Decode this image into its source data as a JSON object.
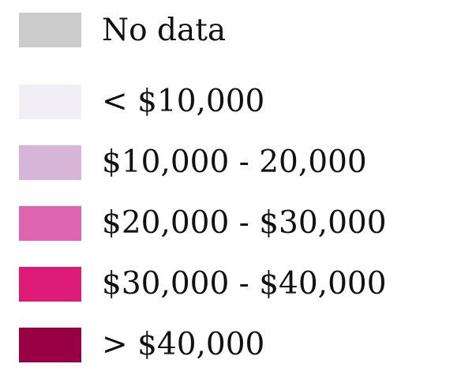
{
  "chart_data": {
    "type": "legend",
    "title": "",
    "entries": [
      {
        "label": "No data",
        "color": "#cccccc"
      },
      {
        "label": " < $10,000",
        "color": "#f1eef6"
      },
      {
        "label": " $10,000 - 20,000",
        "color": "#d7b5d8"
      },
      {
        "label": " $20,000 - $30,000",
        "color": "#df65b0"
      },
      {
        "label": " $30,000 - $40,000",
        "color": "#dd1c77"
      },
      {
        "label": "> $40,000",
        "color": "#980043"
      }
    ]
  }
}
